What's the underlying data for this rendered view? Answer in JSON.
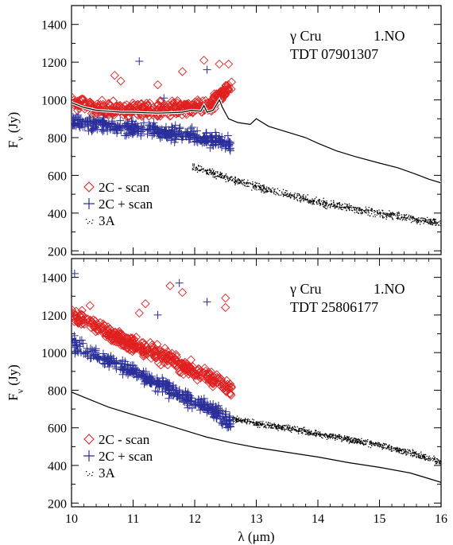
{
  "colors": {
    "minus_scan": "#e02020",
    "plus_scan": "#2b2f9a",
    "band3a": "#000000",
    "line": "#000000"
  },
  "chart_data": [
    {
      "type": "scatter",
      "annotation": {
        "star": "γ Cru",
        "obs": "1.NO",
        "tdt": "TDT 07901307"
      },
      "ylabel": "F",
      "ylabel_sub": "ν",
      "ylabel_unit": " (Jy)",
      "xlim": [
        10,
        16
      ],
      "ylim": [
        180,
        1500
      ],
      "yticks": [
        200,
        400,
        600,
        800,
        1000,
        1200,
        1400
      ],
      "xticks": [
        10,
        11,
        12,
        13,
        14,
        15,
        16
      ],
      "legend_position": "lower-left",
      "series": [
        {
          "name": "2C  - scan",
          "marker": "diamond",
          "x_range": [
            10.0,
            12.6
          ],
          "trend": [
            [
              10.0,
              990
            ],
            [
              10.5,
              955
            ],
            [
              11.0,
              945
            ],
            [
              11.5,
              945
            ],
            [
              12.0,
              960
            ],
            [
              12.3,
              990
            ],
            [
              12.6,
              1080
            ]
          ],
          "spread": 60,
          "outliers": [
            [
              10.7,
              1130
            ],
            [
              10.8,
              1100
            ],
            [
              11.4,
              1080
            ],
            [
              11.8,
              1150
            ],
            [
              12.15,
              1210
            ],
            [
              12.4,
              1190
            ],
            [
              12.55,
              1190
            ]
          ]
        },
        {
          "name": "2C + scan",
          "marker": "plus",
          "x_range": [
            10.0,
            12.6
          ],
          "trend": [
            [
              10.0,
              890
            ],
            [
              10.5,
              865
            ],
            [
              11.0,
              845
            ],
            [
              11.5,
              830
            ],
            [
              12.0,
              810
            ],
            [
              12.3,
              790
            ],
            [
              12.6,
              760
            ]
          ],
          "spread": 55,
          "outliers": [
            [
              11.1,
              1205
            ],
            [
              12.2,
              1160
            ],
            [
              11.5,
              1010
            ]
          ]
        },
        {
          "name": "3A",
          "marker": "dot",
          "x_range": [
            11.95,
            16.0
          ],
          "trend": [
            [
              11.95,
              650
            ],
            [
              12.5,
              590
            ],
            [
              13.0,
              540
            ],
            [
              13.5,
              500
            ],
            [
              14.0,
              460
            ],
            [
              14.5,
              430
            ],
            [
              15.0,
              400
            ],
            [
              15.5,
              375
            ],
            [
              16.0,
              345
            ]
          ],
          "spread": 30,
          "outliers": []
        }
      ],
      "lines": [
        {
          "points": [
            [
              10.0,
              985
            ],
            [
              10.2,
              960
            ],
            [
              10.4,
              945
            ],
            [
              10.6,
              940
            ],
            [
              10.8,
              935
            ],
            [
              11.0,
              935
            ],
            [
              11.2,
              932
            ],
            [
              11.4,
              930
            ],
            [
              11.6,
              932
            ],
            [
              11.8,
              935
            ],
            [
              11.95,
              945
            ],
            [
              12.1,
              940
            ],
            [
              12.15,
              970
            ],
            [
              12.2,
              935
            ],
            [
              12.3,
              945
            ],
            [
              12.4,
              1000
            ],
            [
              12.45,
              960
            ],
            [
              12.55,
              900
            ],
            [
              12.7,
              880
            ],
            [
              12.9,
              870
            ],
            [
              13.0,
              900
            ],
            [
              13.2,
              860
            ],
            [
              13.5,
              830
            ],
            [
              13.8,
              800
            ],
            [
              14.0,
              770
            ],
            [
              14.3,
              730
            ],
            [
              14.6,
              700
            ],
            [
              15.0,
              665
            ],
            [
              15.3,
              640
            ],
            [
              15.6,
              605
            ],
            [
              15.8,
              580
            ],
            [
              16.0,
              560
            ]
          ]
        }
      ]
    },
    {
      "type": "scatter",
      "annotation": {
        "star": "γ Cru",
        "obs": "1.NO",
        "tdt": "TDT 25806177"
      },
      "ylabel": "F",
      "ylabel_sub": "ν",
      "ylabel_unit": " (Jy)",
      "xlabel": "λ (μm)",
      "xlim": [
        10,
        16
      ],
      "ylim": [
        180,
        1500
      ],
      "yticks": [
        200,
        400,
        600,
        800,
        1000,
        1200,
        1400
      ],
      "xticks": [
        10,
        11,
        12,
        13,
        14,
        15,
        16
      ],
      "legend_position": "lower-left",
      "series": [
        {
          "name": "2C  - scan",
          "marker": "diamond",
          "x_range": [
            10.0,
            12.6
          ],
          "trend": [
            [
              10.0,
              1200
            ],
            [
              10.5,
              1120
            ],
            [
              11.0,
              1040
            ],
            [
              11.5,
              980
            ],
            [
              12.0,
              900
            ],
            [
              12.3,
              860
            ],
            [
              12.6,
              800
            ]
          ],
          "spread": 60,
          "outliers": [
            [
              10.3,
              1250
            ],
            [
              11.1,
              1210
            ],
            [
              11.2,
              1260
            ],
            [
              11.6,
              1355
            ],
            [
              11.8,
              1320
            ],
            [
              12.5,
              1290
            ],
            [
              12.5,
              1240
            ]
          ]
        },
        {
          "name": "2C + scan",
          "marker": "plus",
          "x_range": [
            10.0,
            12.6
          ],
          "trend": [
            [
              10.0,
              1050
            ],
            [
              10.5,
              970
            ],
            [
              11.0,
              900
            ],
            [
              11.5,
              820
            ],
            [
              12.0,
              740
            ],
            [
              12.3,
              690
            ],
            [
              12.6,
              620
            ]
          ],
          "spread": 55,
          "outliers": [
            [
              10.05,
              1420
            ],
            [
              11.75,
              1370
            ],
            [
              11.4,
              1200
            ],
            [
              12.2,
              1270
            ]
          ]
        },
        {
          "name": "3A",
          "marker": "dot",
          "x_range": [
            12.6,
            16.0
          ],
          "trend": [
            [
              12.6,
              650
            ],
            [
              13.0,
              625
            ],
            [
              13.5,
              600
            ],
            [
              14.0,
              570
            ],
            [
              14.5,
              540
            ],
            [
              15.0,
              510
            ],
            [
              15.5,
              470
            ],
            [
              16.0,
              420
            ]
          ],
          "spread": 25,
          "outliers": []
        }
      ],
      "lines": [
        {
          "points": [
            [
              10.0,
              790
            ],
            [
              10.3,
              750
            ],
            [
              10.6,
              710
            ],
            [
              11.0,
              670
            ],
            [
              11.4,
              630
            ],
            [
              11.8,
              590
            ],
            [
              12.2,
              550
            ],
            [
              12.6,
              520
            ],
            [
              13.0,
              495
            ],
            [
              13.5,
              470
            ],
            [
              14.0,
              445
            ],
            [
              14.5,
              415
            ],
            [
              15.0,
              390
            ],
            [
              15.5,
              360
            ],
            [
              15.8,
              330
            ],
            [
              16.0,
              310
            ]
          ]
        }
      ]
    }
  ]
}
